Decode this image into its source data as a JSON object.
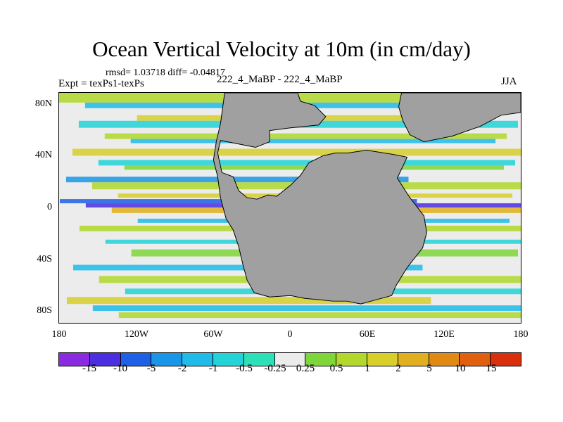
{
  "title": "Ocean Vertical Velocity at 10m (in cm/day)",
  "stats": "rmsd= 1.03718 diff= -0.04817",
  "experiment": "Expt = texPs1-texPs",
  "runs": "222_4_MaBP - 222_4_MaBP",
  "season": "JJA",
  "chart_data": {
    "type": "heatmap",
    "projection": "cylindrical equidistant",
    "field": "Ocean vertical velocity difference at 10m",
    "units": "cm/day",
    "x_axis": {
      "range": [
        -180,
        180
      ],
      "ticks": [
        {
          "value": -180,
          "label": "180"
        },
        {
          "value": -120,
          "label": "120W"
        },
        {
          "value": -60,
          "label": "60W"
        },
        {
          "value": 0,
          "label": "0"
        },
        {
          "value": 60,
          "label": "60E"
        },
        {
          "value": 120,
          "label": "120E"
        },
        {
          "value": 180,
          "label": "180"
        }
      ]
    },
    "y_axis": {
      "range": [
        -90,
        90
      ],
      "ticks": [
        {
          "value": 80,
          "label": "80N"
        },
        {
          "value": 40,
          "label": "40N"
        },
        {
          "value": 0,
          "label": "0"
        },
        {
          "value": -40,
          "label": "40S"
        },
        {
          "value": -80,
          "label": "80S"
        }
      ]
    },
    "contour_levels": [
      "-15",
      "-10",
      "-5",
      "-2",
      "-1",
      "-0.5",
      "-0.25",
      "0.25",
      "0.5",
      "1",
      "2",
      "5",
      "10",
      "15"
    ],
    "colorbar_colors": [
      "#8a2be2",
      "#4a2ee0",
      "#1e60e6",
      "#1a96e8",
      "#1fbcea",
      "#22d4d8",
      "#2ee0b8",
      "#ececec",
      "#7fd63a",
      "#b2d82c",
      "#d8cf2a",
      "#e0b020",
      "#e08a14",
      "#e06010",
      "#d8300c"
    ],
    "land_color": "#a0a0a0"
  }
}
